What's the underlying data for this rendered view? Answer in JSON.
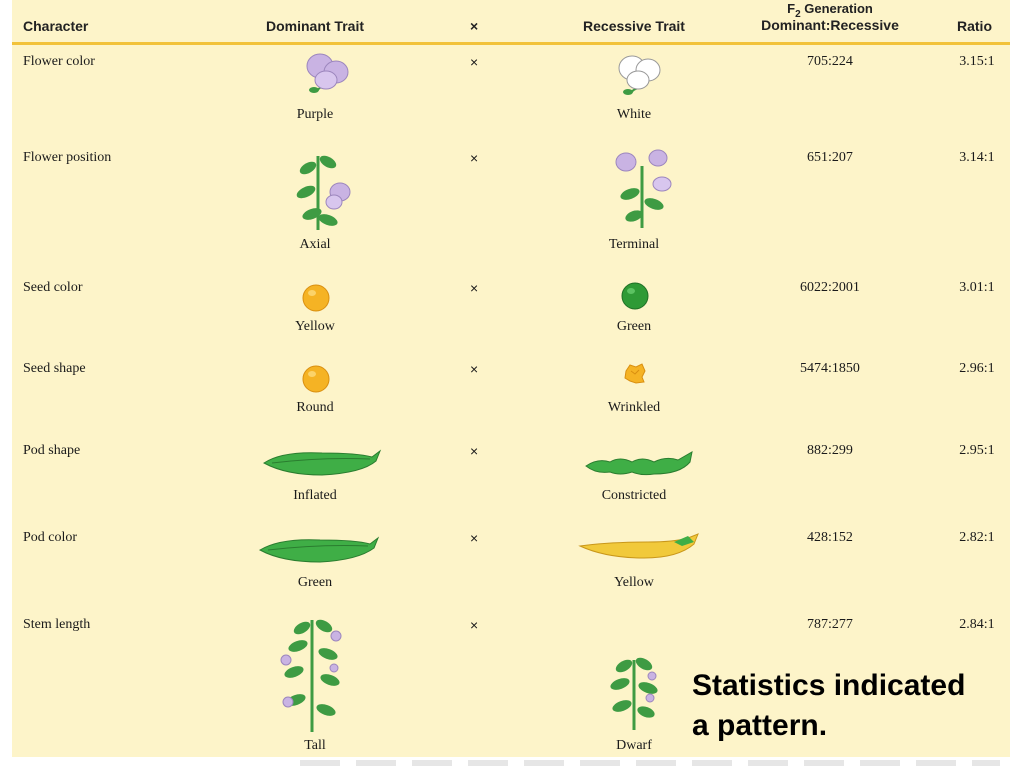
{
  "header": {
    "character": "Character",
    "dominant": "Dominant Trait",
    "cross": "×",
    "recessive": "Recessive Trait",
    "f2_prefix": "F",
    "f2_sub": "2",
    "f2_suffix": " Generation",
    "f2_line2": "Dominant:Recessive",
    "ratio": "Ratio"
  },
  "rows": [
    {
      "character": "Flower color",
      "dominant": "Purple",
      "cross": "×",
      "recessive": "White",
      "counts": "705:224",
      "ratio": "3.15:1"
    },
    {
      "character": "Flower position",
      "dominant": "Axial",
      "cross": "×",
      "recessive": "Terminal",
      "counts": "651:207",
      "ratio": "3.14:1"
    },
    {
      "character": "Seed color",
      "dominant": "Yellow",
      "cross": "×",
      "recessive": "Green",
      "counts": "6022:2001",
      "ratio": "3.01:1"
    },
    {
      "character": "Seed shape",
      "dominant": "Round",
      "cross": "×",
      "recessive": "Wrinkled",
      "counts": "5474:1850",
      "ratio": "2.96:1"
    },
    {
      "character": "Pod shape",
      "dominant": "Inflated",
      "cross": "×",
      "recessive": "Constricted",
      "counts": "882:299",
      "ratio": "2.95:1"
    },
    {
      "character": "Pod color",
      "dominant": "Green",
      "cross": "×",
      "recessive": "Yellow",
      "counts": "428:152",
      "ratio": "2.82:1"
    },
    {
      "character": "Stem length",
      "dominant": "Tall",
      "cross": "×",
      "recessive": "Dwarf",
      "counts": "787:277",
      "ratio": "2.84:1"
    }
  ],
  "caption": {
    "line1": "Statistics indicated",
    "line2": "a pattern."
  },
  "icons": {
    "purple_flower": "purple-flower-icon",
    "white_flower": "white-flower-icon",
    "axial_plant": "axial-plant-icon",
    "terminal_plant": "terminal-plant-icon",
    "yellow_seed": "yellow-seed-icon",
    "green_seed": "green-seed-icon",
    "round_seed": "round-seed-icon",
    "wrinkled_seed": "wrinkled-seed-icon",
    "inflated_pod": "inflated-pod-icon",
    "constricted_pod": "constricted-pod-icon",
    "green_pod": "green-pod-icon",
    "yellow_pod": "yellow-pod-icon",
    "tall_plant": "tall-plant-icon",
    "dwarf_plant": "dwarf-plant-icon"
  },
  "colors": {
    "panel_background": "#fdf4c9",
    "header_rule": "#f2c23a",
    "purple_petal": "#c9b3e3",
    "white_petal": "#ffffff",
    "leaf_green": "#3e9b43",
    "seed_yellow": "#f5b324",
    "seed_green": "#2f9a36",
    "pod_green": "#3fae46",
    "pod_yellow": "#f1c93a"
  }
}
